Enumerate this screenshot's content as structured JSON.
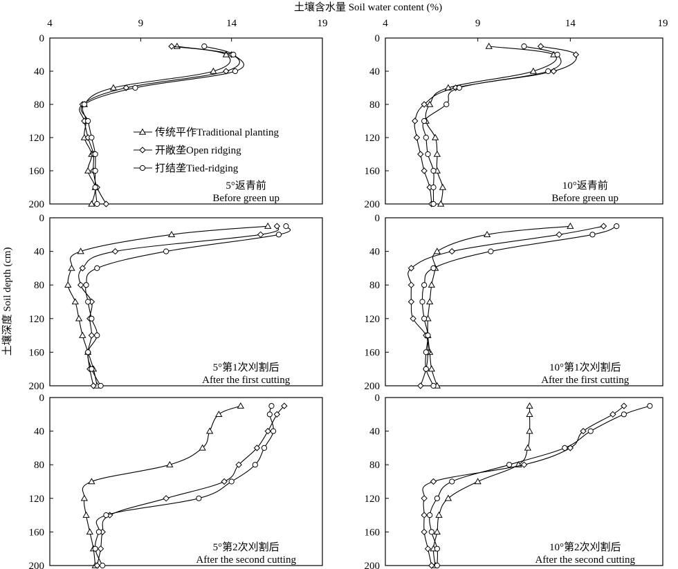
{
  "figure": {
    "x_axis_title": "土壤含水量 Soil water content (%)",
    "y_axis_title": "土壤深度 Soil depth (cm)"
  },
  "legend": [
    {
      "marker": "triangle",
      "label": "传统平作Traditional planting"
    },
    {
      "marker": "diamond",
      "label": "开敞垄Open ridging"
    },
    {
      "marker": "circle",
      "label": "打结垄Tied-ridging"
    }
  ],
  "chart_data": [
    {
      "type": "line",
      "panel": "row1-left",
      "label_cn": "5°返青前",
      "label_en": "Before green up",
      "xlim": [
        4,
        19
      ],
      "xticks": [
        4,
        9,
        14,
        19
      ],
      "ylim": [
        0,
        200
      ],
      "yticks": [
        0,
        40,
        80,
        120,
        160,
        200
      ],
      "y_inverted": true,
      "series": [
        {
          "marker": "triangle",
          "points": [
            [
              11,
              10
            ],
            [
              13.7,
              20
            ],
            [
              13,
              40
            ],
            [
              7.5,
              60
            ],
            [
              5.9,
              80
            ],
            [
              6,
              100
            ],
            [
              5.9,
              120
            ],
            [
              6.3,
              140
            ],
            [
              6.1,
              160
            ],
            [
              6.5,
              180
            ],
            [
              6.3,
              200
            ]
          ]
        },
        {
          "marker": "diamond",
          "points": [
            [
              10.7,
              10
            ],
            [
              14,
              20
            ],
            [
              13.7,
              40
            ],
            [
              8.2,
              60
            ],
            [
              5.8,
              80
            ],
            [
              5.9,
              100
            ],
            [
              6.1,
              120
            ],
            [
              6.4,
              140
            ],
            [
              6.4,
              160
            ],
            [
              6.6,
              180
            ],
            [
              7.1,
              200
            ]
          ]
        },
        {
          "marker": "circle",
          "points": [
            [
              12.5,
              10
            ],
            [
              14.1,
              20
            ],
            [
              14.2,
              40
            ],
            [
              8.7,
              60
            ],
            [
              5.9,
              80
            ],
            [
              6.1,
              100
            ],
            [
              6.3,
              120
            ],
            [
              6.5,
              140
            ],
            [
              6.5,
              160
            ],
            [
              6.5,
              180
            ],
            [
              6.6,
              200
            ]
          ]
        }
      ]
    },
    {
      "type": "line",
      "panel": "row1-right",
      "label_cn": "10°返青前",
      "label_en": "Before green up",
      "xlim": [
        4,
        19
      ],
      "xticks": [
        4,
        9,
        14,
        19
      ],
      "ylim": [
        0,
        200
      ],
      "yticks": [
        0,
        40,
        80,
        120,
        160,
        200
      ],
      "y_inverted": true,
      "series": [
        {
          "marker": "triangle",
          "points": [
            [
              9.6,
              10
            ],
            [
              13.1,
              20
            ],
            [
              12,
              40
            ],
            [
              7.4,
              60
            ],
            [
              6.4,
              80
            ],
            [
              6.2,
              100
            ],
            [
              6.7,
              120
            ],
            [
              6.8,
              140
            ],
            [
              6.8,
              160
            ],
            [
              7.1,
              180
            ],
            [
              7,
              200
            ]
          ]
        },
        {
          "marker": "diamond",
          "points": [
            [
              12.4,
              10
            ],
            [
              14.3,
              20
            ],
            [
              13.1,
              40
            ],
            [
              7.8,
              60
            ],
            [
              6.1,
              80
            ],
            [
              5.6,
              100
            ],
            [
              5.7,
              120
            ],
            [
              5.9,
              140
            ],
            [
              6.1,
              160
            ],
            [
              6.4,
              180
            ],
            [
              6.5,
              200
            ]
          ]
        },
        {
          "marker": "circle",
          "points": [
            [
              11.5,
              10
            ],
            [
              13.3,
              20
            ],
            [
              12.8,
              40
            ],
            [
              8,
              60
            ],
            [
              7.3,
              80
            ],
            [
              6.1,
              100
            ],
            [
              6.2,
              120
            ],
            [
              6.3,
              140
            ],
            [
              6.6,
              160
            ],
            [
              6.6,
              180
            ],
            [
              6.6,
              200
            ]
          ]
        }
      ]
    },
    {
      "type": "line",
      "panel": "row2-left",
      "label_cn": "5°第1次刈割后",
      "label_en": "After the first cutting",
      "xlim": [
        4,
        19
      ],
      "xticks": [],
      "ylim": [
        0,
        200
      ],
      "yticks": [
        0,
        40,
        80,
        120,
        160,
        200
      ],
      "y_inverted": true,
      "series": [
        {
          "marker": "triangle",
          "points": [
            [
              16,
              10
            ],
            [
              10.7,
              20
            ],
            [
              5.7,
              40
            ],
            [
              5.2,
              60
            ],
            [
              5,
              80
            ],
            [
              5.4,
              100
            ],
            [
              5.6,
              120
            ],
            [
              5.8,
              140
            ],
            [
              6.1,
              160
            ],
            [
              6.4,
              180
            ],
            [
              6.6,
              200
            ]
          ]
        },
        {
          "marker": "diamond",
          "points": [
            [
              16.5,
              10
            ],
            [
              15.6,
              20
            ],
            [
              7.6,
              40
            ],
            [
              5.8,
              60
            ],
            [
              5.7,
              80
            ],
            [
              6.3,
              100
            ],
            [
              6.2,
              120
            ],
            [
              6.3,
              140
            ],
            [
              6.1,
              160
            ],
            [
              6.2,
              180
            ],
            [
              6.4,
              200
            ]
          ]
        },
        {
          "marker": "circle",
          "points": [
            [
              17,
              10
            ],
            [
              16.6,
              20
            ],
            [
              10.4,
              40
            ],
            [
              6.6,
              60
            ],
            [
              6,
              80
            ],
            [
              6.1,
              100
            ],
            [
              6.3,
              120
            ],
            [
              6.6,
              140
            ],
            [
              6.1,
              160
            ],
            [
              6.3,
              180
            ],
            [
              6.8,
              200
            ]
          ]
        }
      ]
    },
    {
      "type": "line",
      "panel": "row2-right",
      "label_cn": "10°第1次刈割后",
      "label_en": "After the first cutting",
      "xlim": [
        4,
        19
      ],
      "xticks": [],
      "ylim": [
        0,
        200
      ],
      "yticks": [
        0,
        40,
        80,
        120,
        160,
        200
      ],
      "y_inverted": true,
      "series": [
        {
          "marker": "triangle",
          "points": [
            [
              14,
              10
            ],
            [
              9.5,
              20
            ],
            [
              6.8,
              40
            ],
            [
              6.7,
              60
            ],
            [
              6.5,
              80
            ],
            [
              6.4,
              100
            ],
            [
              6.3,
              120
            ],
            [
              6.3,
              140
            ],
            [
              6.4,
              160
            ],
            [
              6.5,
              180
            ],
            [
              6.8,
              200
            ]
          ]
        },
        {
          "marker": "diamond",
          "points": [
            [
              15.8,
              10
            ],
            [
              13.4,
              20
            ],
            [
              7.6,
              40
            ],
            [
              5.4,
              60
            ],
            [
              5.4,
              80
            ],
            [
              5.4,
              100
            ],
            [
              5.5,
              120
            ],
            [
              6.2,
              140
            ],
            [
              6.3,
              160
            ],
            [
              6.2,
              180
            ],
            [
              5.9,
              200
            ]
          ]
        },
        {
          "marker": "circle",
          "points": [
            [
              16.5,
              10
            ],
            [
              15.2,
              20
            ],
            [
              9.7,
              40
            ],
            [
              6.6,
              60
            ],
            [
              6.1,
              80
            ],
            [
              6,
              100
            ],
            [
              6.1,
              120
            ],
            [
              6.3,
              140
            ],
            [
              6.2,
              160
            ],
            [
              6.2,
              180
            ],
            [
              6.6,
              200
            ]
          ]
        }
      ]
    },
    {
      "type": "line",
      "panel": "row3-left",
      "label_cn": "5°第2次刈割后",
      "label_en": "After the second cutting",
      "xlim": [
        4,
        19
      ],
      "xticks": [],
      "ylim": [
        0,
        200
      ],
      "yticks": [
        0,
        40,
        80,
        120,
        160,
        200
      ],
      "y_inverted": true,
      "series": [
        {
          "marker": "triangle",
          "points": [
            [
              14.5,
              10
            ],
            [
              13.3,
              20
            ],
            [
              12.8,
              40
            ],
            [
              12.4,
              60
            ],
            [
              10.6,
              80
            ],
            [
              6.3,
              100
            ],
            [
              5.9,
              120
            ],
            [
              6,
              140
            ],
            [
              6.2,
              160
            ],
            [
              6.4,
              180
            ],
            [
              6.5,
              200
            ]
          ]
        },
        {
          "marker": "diamond",
          "points": [
            [
              16.9,
              10
            ],
            [
              16.5,
              20
            ],
            [
              16,
              40
            ],
            [
              15.4,
              60
            ],
            [
              14.4,
              80
            ],
            [
              13.6,
              100
            ],
            [
              10.4,
              120
            ],
            [
              7.3,
              140
            ],
            [
              6.9,
              160
            ],
            [
              6.8,
              180
            ],
            [
              6.6,
              200
            ]
          ]
        },
        {
          "marker": "circle",
          "points": [
            [
              16.2,
              10
            ],
            [
              16.1,
              20
            ],
            [
              16.3,
              40
            ],
            [
              15.8,
              60
            ],
            [
              15.3,
              80
            ],
            [
              14,
              100
            ],
            [
              12.2,
              120
            ],
            [
              7.1,
              140
            ],
            [
              6.7,
              160
            ],
            [
              6.5,
              180
            ],
            [
              6.9,
              200
            ]
          ]
        }
      ]
    },
    {
      "type": "line",
      "panel": "row3-right",
      "label_cn": "10°第2次刈割后",
      "label_en": "After the second cutting",
      "xlim": [
        4,
        19
      ],
      "xticks": [],
      "ylim": [
        0,
        200
      ],
      "yticks": [
        0,
        40,
        80,
        120,
        160,
        200
      ],
      "y_inverted": true,
      "series": [
        {
          "marker": "triangle",
          "points": [
            [
              11.8,
              10
            ],
            [
              11.8,
              20
            ],
            [
              11.8,
              40
            ],
            [
              11.7,
              60
            ],
            [
              11.2,
              80
            ],
            [
              9,
              100
            ],
            [
              7.4,
              120
            ],
            [
              6.9,
              140
            ],
            [
              6.8,
              160
            ],
            [
              6.6,
              180
            ],
            [
              6.7,
              200
            ]
          ]
        },
        {
          "marker": "diamond",
          "points": [
            [
              16.9,
              10
            ],
            [
              16.3,
              20
            ],
            [
              14.7,
              40
            ],
            [
              14,
              60
            ],
            [
              11.5,
              80
            ],
            [
              6.6,
              100
            ],
            [
              6.1,
              120
            ],
            [
              6.1,
              140
            ],
            [
              6.1,
              160
            ],
            [
              6.3,
              180
            ],
            [
              6.5,
              200
            ]
          ]
        },
        {
          "marker": "circle",
          "points": [
            [
              18.3,
              10
            ],
            [
              16.9,
              20
            ],
            [
              15.1,
              40
            ],
            [
              13.7,
              60
            ],
            [
              10.7,
              80
            ],
            [
              7.6,
              100
            ],
            [
              6.8,
              120
            ],
            [
              6.4,
              140
            ],
            [
              6.5,
              160
            ],
            [
              6.8,
              180
            ],
            [
              6.8,
              200
            ]
          ]
        }
      ]
    }
  ]
}
